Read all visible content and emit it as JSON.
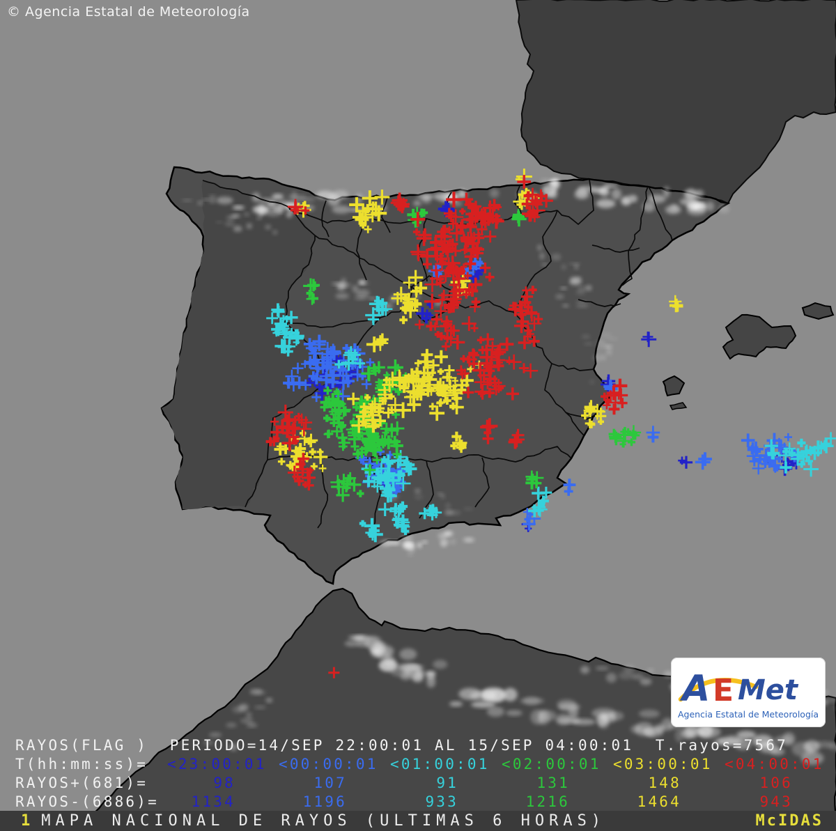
{
  "header": {
    "copyright": "© Agencia Estatal de Meteorología"
  },
  "legend": {
    "row1": "RAYOS(FLAG )  PERIODO=14/SEP 22:00:01 AL 15/SEP 04:00:01  T.rayos=7567",
    "time_label": "T(hh:mm:ss)=",
    "plus_label": "RAYOS+(681)=",
    "minus_label": "RAYOS-(6886)=",
    "categories": [
      {
        "time": "<23:00:01",
        "plus": "98",
        "minus": "1134",
        "color": "#2222c8"
      },
      {
        "time": "<00:00:01",
        "plus": "107",
        "minus": "1196",
        "color": "#3a6cf0"
      },
      {
        "time": "<01:00:01",
        "plus": "91",
        "minus": "933",
        "color": "#36d2dc"
      },
      {
        "time": "<02:00:01",
        "plus": "131",
        "minus": "1216",
        "color": "#2cc83c"
      },
      {
        "time": "<03:00:01",
        "plus": "148",
        "minus": "1464",
        "color": "#ecdf2e"
      },
      {
        "time": "<04:00:01",
        "plus": "106",
        "minus": "943",
        "color": "#d82020"
      }
    ],
    "totals": {
      "plus": "681",
      "minus": "6886",
      "all": "7567"
    }
  },
  "footer": {
    "index": "1",
    "title": "MAPA NACIONAL DE RAYOS (ULTIMAS 6 HORAS)",
    "brand": "McIDAS"
  },
  "logo": {
    "letter_a": "A",
    "letter_e": "E",
    "letter_met": "Met",
    "subtitle": "Agencia Estatal de Meteorología"
  },
  "chart_data": {
    "type": "table",
    "title": "Rayos por intervalo horario (ultimas 6 horas)",
    "categories": [
      "<23:00:01",
      "<00:00:01",
      "<01:00:01",
      "<02:00:01",
      "<03:00:01",
      "<04:00:01"
    ],
    "series": [
      {
        "name": "RAYOS+",
        "values": [
          98,
          107,
          91,
          131,
          148,
          106
        ],
        "total": 681
      },
      {
        "name": "RAYOS-",
        "values": [
          1134,
          1196,
          933,
          1216,
          1464,
          943
        ],
        "total": 6886
      }
    ],
    "total_rayos": 7567,
    "period": "14/SEP 22:00:01 AL 15/SEP 04:00:01"
  },
  "strike_clusters": [
    [
      0,
      478,
      545,
      30,
      22,
      18
    ],
    [
      0,
      1125,
      662,
      22,
      12,
      10
    ],
    [
      0,
      640,
      300,
      6,
      5,
      3
    ],
    [
      0,
      690,
      390,
      8,
      8,
      4
    ],
    [
      0,
      930,
      485,
      3,
      3,
      2
    ],
    [
      0,
      873,
      548,
      4,
      4,
      2
    ],
    [
      0,
      555,
      690,
      10,
      10,
      6
    ],
    [
      0,
      760,
      755,
      5,
      5,
      2
    ],
    [
      0,
      980,
      660,
      4,
      4,
      2
    ],
    [
      0,
      612,
      452,
      10,
      10,
      5
    ],
    [
      1,
      472,
      528,
      40,
      28,
      60
    ],
    [
      1,
      543,
      668,
      22,
      18,
      22
    ],
    [
      1,
      1112,
      652,
      28,
      18,
      28
    ],
    [
      1,
      678,
      385,
      10,
      8,
      6
    ],
    [
      1,
      940,
      622,
      4,
      4,
      2
    ],
    [
      1,
      1008,
      662,
      3,
      3,
      2
    ],
    [
      1,
      880,
      552,
      5,
      5,
      2
    ],
    [
      1,
      815,
      700,
      6,
      6,
      3
    ],
    [
      1,
      568,
      700,
      12,
      12,
      8
    ],
    [
      1,
      760,
      742,
      8,
      10,
      5
    ],
    [
      1,
      620,
      390,
      8,
      6,
      4
    ],
    [
      2,
      408,
      480,
      15,
      30,
      25
    ],
    [
      2,
      560,
      685,
      28,
      25,
      35
    ],
    [
      2,
      572,
      748,
      16,
      18,
      15
    ],
    [
      2,
      1145,
      655,
      30,
      15,
      22
    ],
    [
      2,
      548,
      448,
      10,
      18,
      10
    ],
    [
      2,
      500,
      515,
      14,
      10,
      8
    ],
    [
      2,
      775,
      722,
      8,
      14,
      8
    ],
    [
      2,
      620,
      738,
      10,
      8,
      6
    ],
    [
      2,
      1185,
      640,
      8,
      8,
      5
    ],
    [
      2,
      530,
      760,
      10,
      8,
      6
    ],
    [
      3,
      520,
      612,
      35,
      40,
      70
    ],
    [
      3,
      558,
      548,
      20,
      22,
      25
    ],
    [
      3,
      480,
      580,
      16,
      14,
      15
    ],
    [
      3,
      600,
      312,
      8,
      8,
      6
    ],
    [
      3,
      895,
      628,
      18,
      12,
      12
    ],
    [
      3,
      768,
      690,
      8,
      8,
      6
    ],
    [
      3,
      450,
      415,
      8,
      14,
      6
    ],
    [
      3,
      745,
      310,
      6,
      5,
      3
    ],
    [
      3,
      502,
      700,
      14,
      12,
      10
    ],
    [
      3,
      545,
      630,
      18,
      12,
      12
    ],
    [
      4,
      615,
      555,
      48,
      32,
      80
    ],
    [
      4,
      540,
      592,
      24,
      18,
      25
    ],
    [
      4,
      435,
      645,
      22,
      25,
      28
    ],
    [
      4,
      590,
      430,
      16,
      26,
      18
    ],
    [
      4,
      528,
      300,
      15,
      20,
      15
    ],
    [
      4,
      755,
      275,
      10,
      16,
      10
    ],
    [
      4,
      855,
      600,
      14,
      12,
      12
    ],
    [
      4,
      975,
      435,
      8,
      5,
      3
    ],
    [
      4,
      430,
      300,
      8,
      5,
      4
    ],
    [
      4,
      665,
      635,
      12,
      8,
      6
    ],
    [
      4,
      545,
      490,
      8,
      6,
      4
    ],
    [
      4,
      660,
      415,
      10,
      12,
      6
    ],
    [
      5,
      650,
      385,
      38,
      65,
      110
    ],
    [
      5,
      686,
      310,
      22,
      18,
      28
    ],
    [
      5,
      705,
      520,
      38,
      32,
      45
    ],
    [
      5,
      757,
      455,
      18,
      32,
      22
    ],
    [
      5,
      770,
      287,
      14,
      20,
      16
    ],
    [
      5,
      415,
      615,
      22,
      20,
      25
    ],
    [
      5,
      440,
      678,
      12,
      14,
      12
    ],
    [
      5,
      880,
      572,
      13,
      13,
      12
    ],
    [
      5,
      575,
      293,
      8,
      6,
      5
    ],
    [
      5,
      425,
      300,
      9,
      6,
      5
    ],
    [
      5,
      742,
      632,
      8,
      8,
      4
    ],
    [
      5,
      478,
      968,
      2,
      2,
      1
    ],
    [
      5,
      640,
      470,
      14,
      20,
      12
    ],
    [
      5,
      700,
      620,
      10,
      10,
      5
    ]
  ]
}
